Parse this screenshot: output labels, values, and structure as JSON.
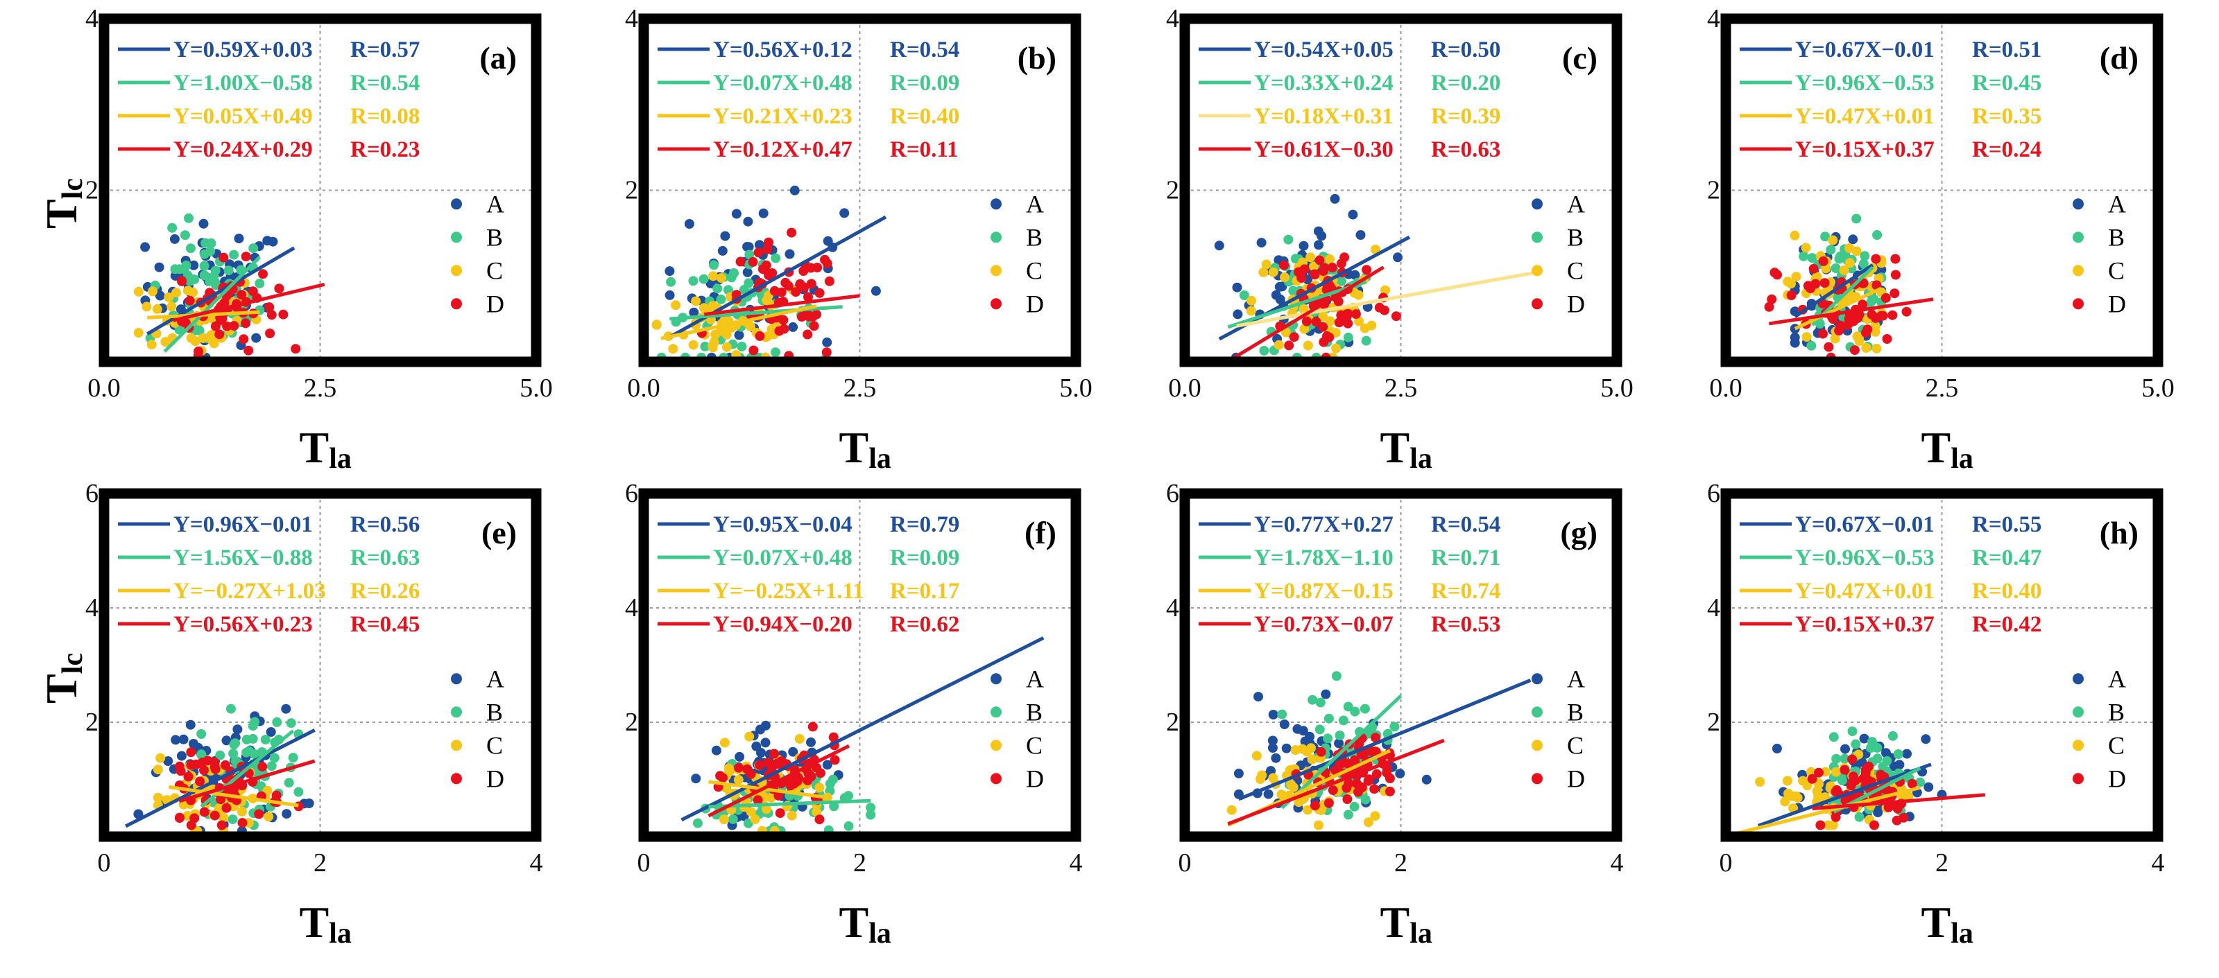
{
  "colors": {
    "A": "#1f4f9c",
    "B": "#3ec98c",
    "C": "#f5c518",
    "D": "#e8101c"
  },
  "y_label": {
    "main": "T",
    "sub": "lc"
  },
  "x_label": {
    "main": "T",
    "sub": "la"
  },
  "chart_data": [
    {
      "type": "scatter",
      "label": "(a)",
      "xlim": [
        0,
        5
      ],
      "ylim": [
        0,
        4
      ],
      "xticks": [
        "0.0",
        "2.5",
        "5.0"
      ],
      "yticks": [
        "2",
        "4"
      ],
      "legend": [
        "A",
        "B",
        "C",
        "D"
      ],
      "series": [
        {
          "name": "A",
          "equation": "Y=0.59X+0.03",
          "r": "R=0.57",
          "line_x": [
            0.5,
            2.2
          ],
          "cx": 1.3,
          "cy": 0.9,
          "sx": 0.4,
          "sy": 0.35,
          "x_range": [
            0.4,
            2.2
          ],
          "y_range": [
            0.05,
            1.7
          ]
        },
        {
          "name": "B",
          "equation": "Y=1.00X−0.58",
          "r": "R=0.54",
          "line_x": [
            0.7,
            1.8
          ],
          "cx": 1.2,
          "cy": 0.8,
          "sx": 0.35,
          "sy": 0.35,
          "x_range": [
            0.5,
            1.8
          ],
          "y_range": [
            0.05,
            2.0
          ]
        },
        {
          "name": "C",
          "equation": "Y=0.05X+0.49",
          "r": "R=0.08",
          "line_x": [
            0.5,
            1.8
          ],
          "cx": 1.1,
          "cy": 0.55,
          "sx": 0.35,
          "sy": 0.25,
          "x_range": [
            0.4,
            1.8
          ],
          "y_range": [
            0.05,
            1.2
          ]
        },
        {
          "name": "D",
          "equation": "Y=0.24X+0.29",
          "r": "R=0.23",
          "line_x": [
            0.8,
            2.55
          ],
          "cx": 1.4,
          "cy": 0.65,
          "sx": 0.3,
          "sy": 0.25,
          "x_range": [
            0.9,
            2.6
          ],
          "y_range": [
            0.05,
            1.3
          ]
        }
      ]
    },
    {
      "type": "scatter",
      "label": "(b)",
      "xlim": [
        0,
        5
      ],
      "ylim": [
        0,
        4
      ],
      "xticks": [
        "0.0",
        "2.5",
        "5.0"
      ],
      "yticks": [
        "2",
        "4"
      ],
      "legend": [
        "A",
        "B",
        "C",
        "D"
      ],
      "series": [
        {
          "name": "A",
          "equation": "Y=0.56X+0.12",
          "r": "R=0.54",
          "line_x": [
            0.3,
            2.8
          ],
          "cx": 1.3,
          "cy": 0.95,
          "sx": 0.5,
          "sy": 0.45,
          "x_range": [
            0.3,
            2.8
          ],
          "y_range": [
            0.05,
            2.6
          ]
        },
        {
          "name": "B",
          "equation": "Y=0.07X+0.48",
          "r": "R=0.09",
          "line_x": [
            0.3,
            2.3
          ],
          "cx": 1.1,
          "cy": 0.55,
          "sx": 0.45,
          "sy": 0.3,
          "x_range": [
            0.2,
            2.3
          ],
          "y_range": [
            0.05,
            1.3
          ]
        },
        {
          "name": "C",
          "equation": "Y=0.21X+0.23",
          "r": "R=0.40",
          "line_x": [
            0.2,
            2.0
          ],
          "cx": 1.0,
          "cy": 0.45,
          "sx": 0.45,
          "sy": 0.25,
          "x_range": [
            0.15,
            2.0
          ],
          "y_range": [
            0.05,
            1.0
          ]
        },
        {
          "name": "D",
          "equation": "Y=0.12X+0.47",
          "r": "R=0.11",
          "line_x": [
            0.7,
            2.5
          ],
          "cx": 1.6,
          "cy": 0.65,
          "sx": 0.35,
          "sy": 0.35,
          "x_range": [
            0.6,
            2.5
          ],
          "y_range": [
            0.05,
            1.6
          ]
        }
      ]
    },
    {
      "type": "scatter",
      "label": "(c)",
      "xlim": [
        0,
        5
      ],
      "ylim": [
        0,
        4
      ],
      "xticks": [
        "0.0",
        "2.5",
        "5.0"
      ],
      "yticks": [
        "2",
        "4"
      ],
      "legend": [
        "A",
        "B",
        "C",
        "D"
      ],
      "series": [
        {
          "name": "A",
          "equation": "Y=0.54X+0.05",
          "r": "R=0.50",
          "line_x": [
            0.4,
            2.6
          ],
          "cx": 1.5,
          "cy": 0.95,
          "sx": 0.4,
          "sy": 0.4,
          "x_range": [
            0.4,
            2.6
          ],
          "y_range": [
            0.05,
            1.9
          ]
        },
        {
          "name": "B",
          "equation": "Y=0.33X+0.24",
          "r": "R=0.20",
          "line_x": [
            0.5,
            2.1
          ],
          "cx": 1.5,
          "cy": 0.75,
          "sx": 0.35,
          "sy": 0.3,
          "x_range": [
            0.5,
            2.1
          ],
          "y_range": [
            0.05,
            1.5
          ]
        },
        {
          "name": "C",
          "equation": "Y=0.18X+0.31",
          "r": "R=0.39",
          "line_x": [
            0.6,
            4.1
          ],
          "cx": 1.5,
          "cy": 0.7,
          "sx": 0.35,
          "sy": 0.3,
          "x_range": [
            0.5,
            4.1
          ],
          "y_range": [
            0.05,
            1.4
          ]
        },
        {
          "name": "D",
          "equation": "Y=0.61X−0.30",
          "r": "R=0.63",
          "line_x": [
            0.5,
            2.3
          ],
          "cx": 1.7,
          "cy": 0.75,
          "sx": 0.35,
          "sy": 0.35,
          "x_range": [
            0.6,
            2.5
          ],
          "y_range": [
            0.05,
            2.0
          ]
        }
      ]
    },
    {
      "type": "scatter",
      "label": "(d)",
      "xlim": [
        0,
        5
      ],
      "ylim": [
        0,
        4
      ],
      "xticks": [
        "0.0",
        "2.5",
        "5.0"
      ],
      "yticks": [
        "2",
        "4"
      ],
      "legend": [
        "A",
        "B",
        "C",
        "D"
      ],
      "series": [
        {
          "name": "A",
          "equation": "Y=0.67X−0.01",
          "r": "R=0.51",
          "line_x": [
            0.8,
            1.7
          ],
          "cx": 1.3,
          "cy": 0.8,
          "sx": 0.3,
          "sy": 0.35,
          "x_range": [
            0.8,
            1.8
          ],
          "y_range": [
            0.05,
            1.6
          ]
        },
        {
          "name": "B",
          "equation": "Y=0.96X−0.53",
          "r": "R=0.45",
          "line_x": [
            1.0,
            1.7
          ],
          "cx": 1.35,
          "cy": 0.85,
          "sx": 0.25,
          "sy": 0.35,
          "x_range": [
            0.9,
            1.8
          ],
          "y_range": [
            0.05,
            1.7
          ]
        },
        {
          "name": "C",
          "equation": "Y=0.47X+0.01",
          "r": "R=0.35",
          "line_x": [
            0.8,
            1.8
          ],
          "cx": 1.3,
          "cy": 0.8,
          "sx": 0.3,
          "sy": 0.35,
          "x_range": [
            0.6,
            1.8
          ],
          "y_range": [
            0.05,
            1.8
          ]
        },
        {
          "name": "D",
          "equation": "Y=0.15X+0.37",
          "r": "R=0.24",
          "line_x": [
            0.5,
            2.4
          ],
          "cx": 1.4,
          "cy": 0.6,
          "sx": 0.4,
          "sy": 0.3,
          "x_range": [
            0.4,
            2.4
          ],
          "y_range": [
            0.05,
            1.2
          ]
        }
      ]
    },
    {
      "type": "scatter",
      "label": "(e)",
      "xlim": [
        0,
        4
      ],
      "ylim": [
        0,
        6
      ],
      "xticks": [
        "0",
        "2",
        "4"
      ],
      "yticks": [
        "2",
        "4",
        "6"
      ],
      "legend": [
        "A",
        "B",
        "C",
        "D"
      ],
      "series": [
        {
          "name": "A",
          "equation": "Y=0.96X−0.01",
          "r": "R=0.56",
          "line_x": [
            0.2,
            1.95
          ],
          "cx": 1.1,
          "cy": 1.1,
          "sx": 0.35,
          "sy": 0.55,
          "x_range": [
            0.2,
            1.95
          ],
          "y_range": [
            0.1,
            2.9
          ]
        },
        {
          "name": "B",
          "equation": "Y=1.56X−0.88",
          "r": "R=0.63",
          "line_x": [
            0.9,
            1.75
          ],
          "cx": 1.35,
          "cy": 1.25,
          "sx": 0.25,
          "sy": 0.45,
          "x_range": [
            0.9,
            1.8
          ],
          "y_range": [
            0.2,
            2.8
          ]
        },
        {
          "name": "C",
          "equation": "Y=−0.27X+1.03",
          "r": "R=0.26",
          "line_x": [
            0.6,
            1.8
          ],
          "cx": 1.0,
          "cy": 0.7,
          "sx": 0.3,
          "sy": 0.3,
          "x_range": [
            0.5,
            1.8
          ],
          "y_range": [
            0.1,
            1.5
          ]
        },
        {
          "name": "D",
          "equation": "Y=0.56X+0.23",
          "r": "R=0.45",
          "line_x": [
            0.7,
            1.95
          ],
          "cx": 1.15,
          "cy": 0.85,
          "sx": 0.25,
          "sy": 0.3,
          "x_range": [
            0.7,
            1.95
          ],
          "y_range": [
            0.2,
            1.6
          ]
        }
      ]
    },
    {
      "type": "scatter",
      "label": "(f)",
      "xlim": [
        0,
        4
      ],
      "ylim": [
        0,
        6
      ],
      "xticks": [
        "0",
        "2",
        "4"
      ],
      "yticks": [
        "2",
        "4",
        "6"
      ],
      "legend": [
        "A",
        "B",
        "C",
        "D"
      ],
      "series": [
        {
          "name": "A",
          "equation": "Y=0.95X−0.04",
          "r": "R=0.79",
          "line_x": [
            0.35,
            3.7
          ],
          "cx": 1.2,
          "cy": 1.1,
          "sx": 0.3,
          "sy": 0.35,
          "x_range": [
            0.3,
            2.0
          ],
          "y_range": [
            0.2,
            2.1
          ]
        },
        {
          "name": "B",
          "equation": "Y=0.07X+0.48",
          "r": "R=0.09",
          "line_x": [
            0.6,
            2.1
          ],
          "cx": 1.2,
          "cy": 0.6,
          "sx": 0.35,
          "sy": 0.3,
          "x_range": [
            0.5,
            2.1
          ],
          "y_range": [
            0.1,
            1.6
          ]
        },
        {
          "name": "C",
          "equation": "Y=−0.25X+1.11",
          "r": "R=0.17",
          "line_x": [
            0.6,
            1.7
          ],
          "cx": 1.1,
          "cy": 0.8,
          "sx": 0.3,
          "sy": 0.35,
          "x_range": [
            0.5,
            1.7
          ],
          "y_range": [
            0.1,
            2.6
          ]
        },
        {
          "name": "D",
          "equation": "Y=0.94X−0.20",
          "r": "R=0.62",
          "line_x": [
            0.6,
            1.9
          ],
          "cx": 1.35,
          "cy": 1.05,
          "sx": 0.25,
          "sy": 0.3,
          "x_range": [
            0.6,
            1.9
          ],
          "y_range": [
            0.3,
            3.2
          ]
        }
      ]
    },
    {
      "type": "scatter",
      "label": "(g)",
      "xlim": [
        0,
        4
      ],
      "ylim": [
        0,
        6
      ],
      "xticks": [
        "0",
        "2",
        "4"
      ],
      "yticks": [
        "2",
        "4",
        "6"
      ],
      "legend": [
        "A",
        "B",
        "C",
        "D"
      ],
      "series": [
        {
          "name": "A",
          "equation": "Y=0.77X+0.27",
          "r": "R=0.54",
          "line_x": [
            0.5,
            3.2
          ],
          "cx": 1.2,
          "cy": 1.2,
          "sx": 0.35,
          "sy": 0.5,
          "x_range": [
            0.5,
            3.2
          ],
          "y_range": [
            0.2,
            3.3
          ]
        },
        {
          "name": "B",
          "equation": "Y=1.78X−1.10",
          "r": "R=0.71",
          "line_x": [
            0.9,
            2.0
          ],
          "cx": 1.5,
          "cy": 1.5,
          "sx": 0.2,
          "sy": 0.5,
          "x_range": [
            0.9,
            2.0
          ],
          "y_range": [
            0.3,
            3.8
          ]
        },
        {
          "name": "C",
          "equation": "Y=0.87X−0.15",
          "r": "R=0.74",
          "line_x": [
            0.4,
            1.9
          ],
          "cx": 1.2,
          "cy": 1.0,
          "sx": 0.3,
          "sy": 0.35,
          "x_range": [
            0.4,
            1.9
          ],
          "y_range": [
            0.2,
            2.0
          ]
        },
        {
          "name": "D",
          "equation": "Y=0.73X−0.07",
          "r": "R=0.53",
          "line_x": [
            0.4,
            2.4
          ],
          "cx": 1.5,
          "cy": 1.1,
          "sx": 0.2,
          "sy": 0.3,
          "x_range": [
            0.9,
            1.9
          ],
          "y_range": [
            0.3,
            2.0
          ]
        }
      ]
    },
    {
      "type": "scatter",
      "label": "(h)",
      "xlim": [
        0,
        4
      ],
      "ylim": [
        0,
        6
      ],
      "xticks": [
        "0",
        "2",
        "4"
      ],
      "yticks": [
        "2",
        "4",
        "6"
      ],
      "legend": [
        "A",
        "B",
        "C",
        "D"
      ],
      "series": [
        {
          "name": "A",
          "equation": "Y=0.67X−0.01",
          "r": "R=0.55",
          "line_x": [
            0.3,
            1.9
          ],
          "cx": 1.25,
          "cy": 0.9,
          "sx": 0.3,
          "sy": 0.4,
          "x_range": [
            0.3,
            2.0
          ],
          "y_range": [
            0.2,
            2.2
          ]
        },
        {
          "name": "B",
          "equation": "Y=0.96X−0.53",
          "r": "R=0.47",
          "line_x": [
            1.0,
            1.8
          ],
          "cx": 1.35,
          "cy": 1.1,
          "sx": 0.2,
          "sy": 0.35,
          "x_range": [
            1.0,
            1.8
          ],
          "y_range": [
            0.3,
            2.0
          ]
        },
        {
          "name": "C",
          "equation": "Y=0.47X+0.01",
          "r": "R=0.40",
          "line_x": [
            0.1,
            1.8
          ],
          "cx": 1.1,
          "cy": 0.8,
          "sx": 0.3,
          "sy": 0.3,
          "x_range": [
            0.1,
            1.8
          ],
          "y_range": [
            0.2,
            1.7
          ]
        },
        {
          "name": "D",
          "equation": "Y=0.15X+0.37",
          "r": "R=0.42",
          "line_x": [
            0.8,
            2.4
          ],
          "cx": 1.3,
          "cy": 0.85,
          "sx": 0.25,
          "sy": 0.3,
          "x_range": [
            0.8,
            2.0
          ],
          "y_range": [
            0.2,
            1.8
          ]
        }
      ]
    }
  ]
}
